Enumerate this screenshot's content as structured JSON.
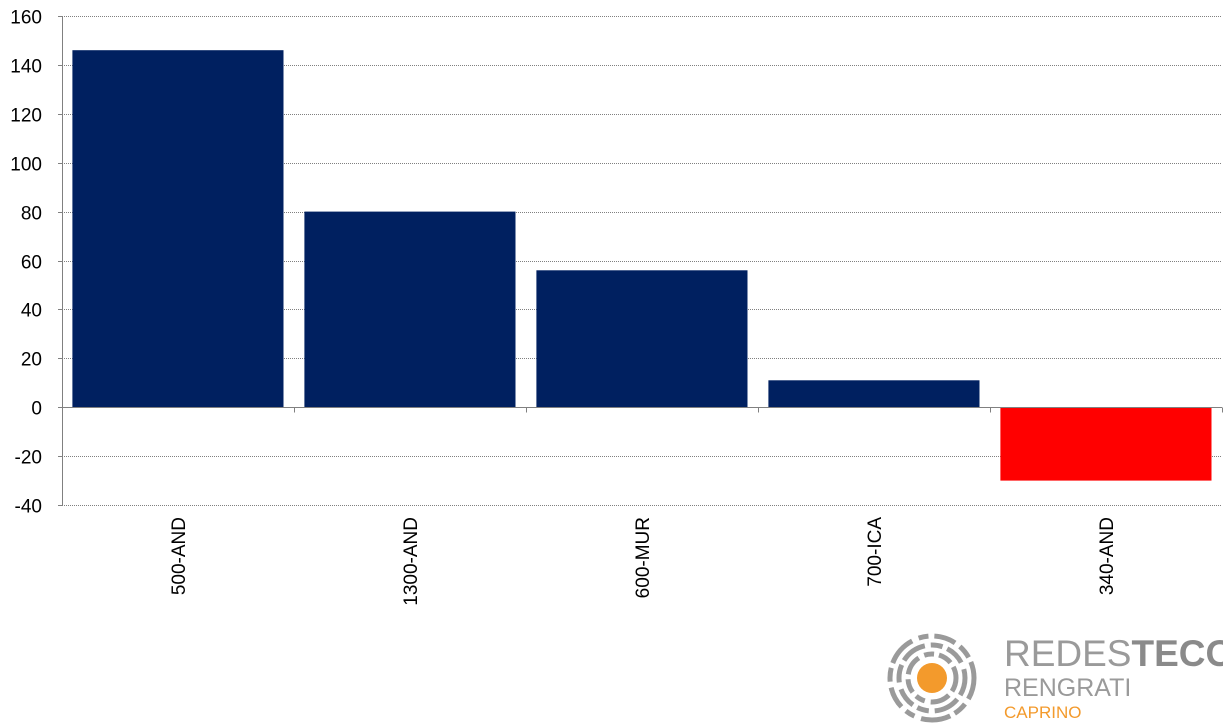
{
  "chart_data": {
    "type": "bar",
    "title": "",
    "xlabel": "",
    "ylabel": "",
    "categories": [
      "500-AND",
      "1300-AND",
      "600-MUR",
      "700-ICA",
      "340-AND"
    ],
    "values": [
      146,
      80,
      56,
      11,
      -30
    ],
    "ylim": [
      -40,
      160
    ],
    "yticks": [
      "160",
      "140",
      "120",
      "100",
      "80",
      "60",
      "40",
      "20",
      "0",
      "-20",
      "-40"
    ],
    "grid": true,
    "colors": {
      "positive": "#002060",
      "negative": "#ff0000"
    }
  },
  "logo": {
    "line1_light": "REDES",
    "line1_bold": "TECO",
    "line2": "RENGRATI",
    "line3": "CAPRINO",
    "colors": {
      "gray": "#9a9a9a",
      "orange": "#f39a2c"
    }
  }
}
